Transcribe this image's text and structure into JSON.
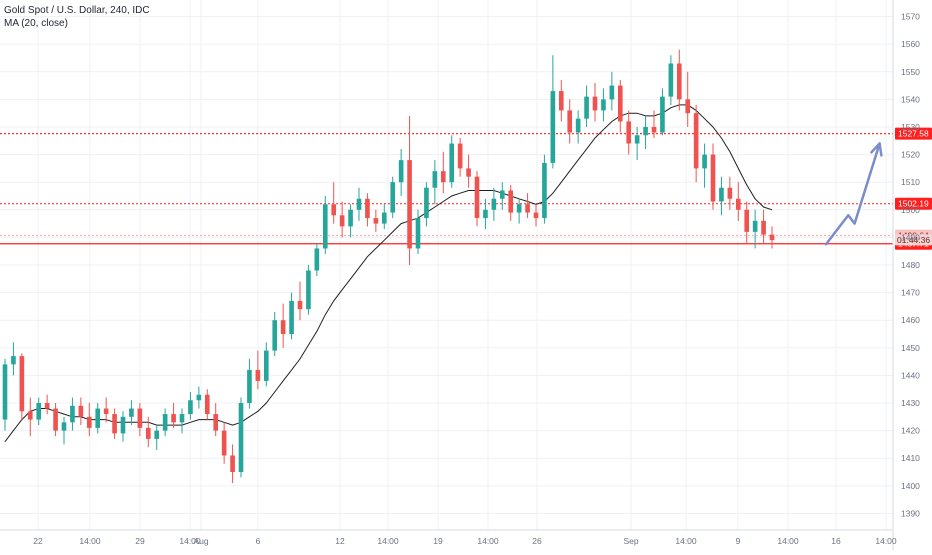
{
  "legend": {
    "symbol_line": "Gold Spot / U.S. Dollar, 240, IDC",
    "ma_line": "MA (20, close)"
  },
  "colors": {
    "up": "#26a69a",
    "down": "#ef5350",
    "ma": "#1f1f1f",
    "level_red": "#ff1f1f",
    "arrow": "#7a8ccc",
    "grid": "#eef0f4",
    "axis_text": "#6b7280"
  },
  "chart_data": {
    "type": "candlestick",
    "ylim": [
      1384,
      1576
    ],
    "y_ticks": [
      1390,
      1400,
      1410,
      1420,
      1430,
      1440,
      1450,
      1460,
      1470,
      1480,
      1490,
      1500,
      1510,
      1520,
      1530,
      1540,
      1550,
      1560,
      1570
    ],
    "x_ticks": [
      "22",
      "14:00",
      "29",
      "14:00",
      "Aug",
      "6",
      "12",
      "14:00",
      "19",
      "14:00",
      "26",
      "Sep",
      "14:00",
      "9",
      "14:00",
      "16",
      "14:00"
    ],
    "levels": [
      {
        "value": 1527.58,
        "label": "1527.58",
        "style": "dotted"
      },
      {
        "value": 1502.19,
        "label": "1502.19",
        "style": "dotted"
      },
      {
        "value": 1490.64,
        "label": "1490.64",
        "style": "dotted-light"
      },
      {
        "value": 1487.71,
        "label": "1487.71",
        "style": "solid"
      }
    ],
    "countdown": "01:44:36",
    "candles": [
      [
        1424,
        1446,
        1420,
        1444
      ],
      [
        1444,
        1452,
        1440,
        1447
      ],
      [
        1447,
        1448,
        1424,
        1427
      ],
      [
        1427,
        1432,
        1418,
        1424
      ],
      [
        1424,
        1432,
        1422,
        1430
      ],
      [
        1430,
        1433,
        1426,
        1428
      ],
      [
        1428,
        1430,
        1418,
        1420
      ],
      [
        1420,
        1425,
        1415,
        1423
      ],
      [
        1423,
        1432,
        1420,
        1429
      ],
      [
        1429,
        1432,
        1422,
        1425
      ],
      [
        1425,
        1430,
        1418,
        1421
      ],
      [
        1421,
        1430,
        1419,
        1428
      ],
      [
        1428,
        1432,
        1423,
        1426
      ],
      [
        1426,
        1428,
        1417,
        1419
      ],
      [
        1419,
        1427,
        1416,
        1425
      ],
      [
        1425,
        1431,
        1422,
        1428
      ],
      [
        1428,
        1430,
        1418,
        1421
      ],
      [
        1421,
        1425,
        1414,
        1417
      ],
      [
        1417,
        1422,
        1413,
        1420
      ],
      [
        1420,
        1428,
        1418,
        1426
      ],
      [
        1426,
        1430,
        1421,
        1423
      ],
      [
        1423,
        1428,
        1419,
        1426
      ],
      [
        1426,
        1434,
        1424,
        1431
      ],
      [
        1431,
        1436,
        1428,
        1433
      ],
      [
        1433,
        1435,
        1424,
        1426
      ],
      [
        1426,
        1430,
        1418,
        1420
      ],
      [
        1420,
        1423,
        1408,
        1411
      ],
      [
        1411,
        1415,
        1401,
        1405
      ],
      [
        1405,
        1432,
        1403,
        1430
      ],
      [
        1430,
        1446,
        1428,
        1442
      ],
      [
        1442,
        1449,
        1435,
        1438
      ],
      [
        1438,
        1452,
        1436,
        1449
      ],
      [
        1449,
        1463,
        1447,
        1460
      ],
      [
        1460,
        1466,
        1450,
        1455
      ],
      [
        1455,
        1470,
        1453,
        1467
      ],
      [
        1467,
        1474,
        1460,
        1464
      ],
      [
        1464,
        1480,
        1462,
        1478
      ],
      [
        1478,
        1488,
        1476,
        1486
      ],
      [
        1486,
        1505,
        1484,
        1502
      ],
      [
        1502,
        1510,
        1495,
        1498
      ],
      [
        1498,
        1503,
        1490,
        1494
      ],
      [
        1494,
        1502,
        1490,
        1500
      ],
      [
        1500,
        1508,
        1496,
        1504
      ],
      [
        1504,
        1506,
        1494,
        1497
      ],
      [
        1497,
        1500,
        1492,
        1495
      ],
      [
        1495,
        1502,
        1493,
        1499
      ],
      [
        1499,
        1512,
        1497,
        1510
      ],
      [
        1510,
        1522,
        1505,
        1518
      ],
      [
        1518,
        1534,
        1480,
        1486
      ],
      [
        1486,
        1500,
        1484,
        1497
      ],
      [
        1497,
        1510,
        1494,
        1508
      ],
      [
        1508,
        1518,
        1502,
        1514
      ],
      [
        1514,
        1521,
        1506,
        1510
      ],
      [
        1510,
        1527,
        1508,
        1524
      ],
      [
        1524,
        1526,
        1512,
        1515
      ],
      [
        1515,
        1520,
        1508,
        1512
      ],
      [
        1512,
        1514,
        1494,
        1497
      ],
      [
        1497,
        1504,
        1493,
        1500
      ],
      [
        1500,
        1508,
        1496,
        1504
      ],
      [
        1504,
        1510,
        1500,
        1507
      ],
      [
        1507,
        1509,
        1496,
        1499
      ],
      [
        1499,
        1504,
        1495,
        1502
      ],
      [
        1502,
        1506,
        1497,
        1499
      ],
      [
        1499,
        1502,
        1494,
        1497
      ],
      [
        1497,
        1520,
        1495,
        1517
      ],
      [
        1517,
        1556,
        1515,
        1543
      ],
      [
        1543,
        1547,
        1532,
        1536
      ],
      [
        1536,
        1540,
        1524,
        1528
      ],
      [
        1528,
        1536,
        1524,
        1533
      ],
      [
        1533,
        1545,
        1530,
        1541
      ],
      [
        1541,
        1546,
        1532,
        1536
      ],
      [
        1536,
        1544,
        1532,
        1540
      ],
      [
        1540,
        1550,
        1536,
        1545
      ],
      [
        1545,
        1547,
        1528,
        1532
      ],
      [
        1532,
        1536,
        1520,
        1524
      ],
      [
        1524,
        1530,
        1518,
        1527
      ],
      [
        1527,
        1534,
        1522,
        1530
      ],
      [
        1530,
        1536,
        1526,
        1528
      ],
      [
        1528,
        1544,
        1527,
        1541
      ],
      [
        1541,
        1556,
        1538,
        1553
      ],
      [
        1553,
        1558,
        1536,
        1540
      ],
      [
        1540,
        1550,
        1530,
        1535
      ],
      [
        1535,
        1538,
        1510,
        1515
      ],
      [
        1515,
        1524,
        1508,
        1520
      ],
      [
        1520,
        1524,
        1500,
        1503
      ],
      [
        1503,
        1512,
        1498,
        1508
      ],
      [
        1508,
        1512,
        1500,
        1504
      ],
      [
        1504,
        1510,
        1496,
        1500
      ],
      [
        1500,
        1503,
        1488,
        1492
      ],
      [
        1492,
        1500,
        1486,
        1496
      ],
      [
        1496,
        1500,
        1488,
        1491
      ],
      [
        1491,
        1494,
        1486,
        1489
      ]
    ],
    "ma_values": [
      1416,
      1420,
      1424,
      1427,
      1428,
      1428,
      1427,
      1426,
      1425,
      1425,
      1424,
      1424,
      1424,
      1423,
      1423,
      1423,
      1423,
      1423,
      1422,
      1422,
      1422,
      1422,
      1423,
      1424,
      1424,
      1424,
      1423,
      1422,
      1423,
      1425,
      1427,
      1430,
      1434,
      1438,
      1442,
      1446,
      1451,
      1456,
      1462,
      1467,
      1471,
      1475,
      1479,
      1483,
      1486,
      1489,
      1492,
      1495,
      1496,
      1497,
      1499,
      1501,
      1503,
      1505,
      1506,
      1507,
      1507,
      1507,
      1507,
      1506,
      1505,
      1504,
      1503,
      1502,
      1503,
      1506,
      1510,
      1514,
      1518,
      1522,
      1526,
      1529,
      1532,
      1534,
      1535,
      1535,
      1534,
      1534,
      1535,
      1537,
      1538,
      1538,
      1536,
      1533,
      1530,
      1526,
      1521,
      1515,
      1509,
      1504,
      1501,
      1500
    ],
    "arrow_points": [
      [
        92.5,
        1487.5
      ],
      [
        95.0,
        1498.0
      ],
      [
        95.7,
        1495.0
      ],
      [
        98.5,
        1524.0
      ]
    ]
  }
}
